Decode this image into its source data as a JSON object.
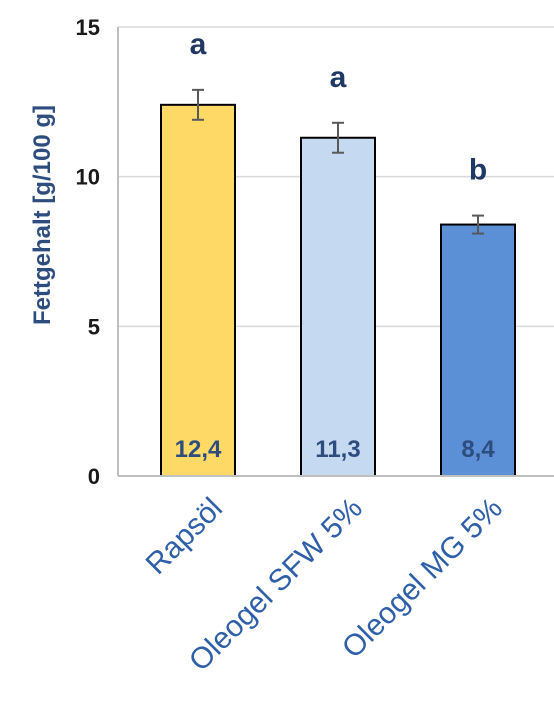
{
  "chart_data": {
    "type": "bar",
    "ylabel": "Fettgehalt  [g/100 g]",
    "ylim": [
      0,
      15
    ],
    "yticks": [
      0,
      5,
      10,
      15
    ],
    "grid": true,
    "categories": [
      "Rapsöl",
      "Oleogel SFW 5%",
      "Oleogel MG 5%"
    ],
    "values": [
      12.4,
      11.3,
      8.4
    ],
    "value_labels": [
      "12,4",
      "11,3",
      "8,4"
    ],
    "errors": [
      0.5,
      0.5,
      0.3
    ],
    "significance": [
      "a",
      "a",
      "b"
    ],
    "colors": [
      "#ffd966",
      "#c5d9f1",
      "#5b8fd6"
    ]
  }
}
